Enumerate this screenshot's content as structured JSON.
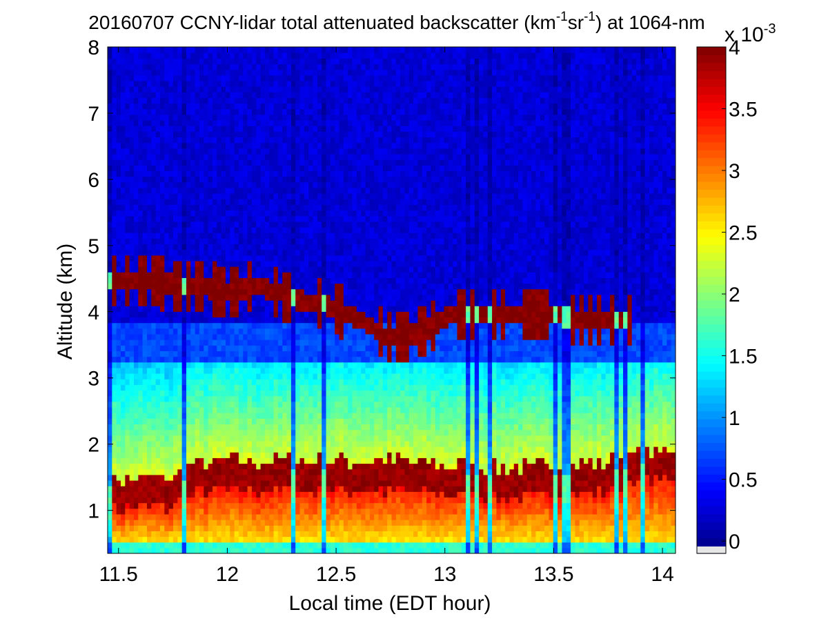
{
  "chart_data": {
    "type": "heatmap",
    "title": {
      "prefix": "20160707 CCNY-lidar total attenuated backscatter (km",
      "sup1": "-1",
      "mid": "sr",
      "sup2": "-1",
      "suffix": ") at 1064-nm"
    },
    "xlabel": "Local time (EDT hour)",
    "ylabel": "Altitude (km)",
    "xlim": [
      11.45,
      14.06
    ],
    "ylim": [
      0.35,
      8
    ],
    "x_ticks": [
      11.5,
      12,
      12.5,
      13,
      13.5,
      14
    ],
    "x_tick_labels": [
      "11.5",
      "12",
      "12.5",
      "13",
      "13.5",
      "14"
    ],
    "y_ticks": [
      1,
      2,
      3,
      4,
      5,
      6,
      7,
      8
    ],
    "y_tick_labels": [
      "1",
      "2",
      "3",
      "4",
      "5",
      "6",
      "7",
      "8"
    ],
    "colorbar": {
      "colormap": "jet",
      "range": [
        -0.1,
        4
      ],
      "ticks": [
        0,
        0.5,
        1,
        1.5,
        2,
        2.5,
        3,
        3.5,
        4
      ],
      "tick_labels": [
        "0",
        "0.5",
        "1",
        "1.5",
        "2",
        "2.5",
        "3",
        "3.5",
        "4"
      ],
      "exponent_label": "x 10",
      "exponent": "-3"
    },
    "features": {
      "boundary_layer_top_km": [
        [
          11.45,
          1.45
        ],
        [
          11.6,
          1.5
        ],
        [
          11.75,
          1.5
        ],
        [
          11.85,
          1.7
        ],
        [
          12.0,
          1.75
        ],
        [
          12.2,
          1.75
        ],
        [
          12.4,
          1.75
        ],
        [
          12.6,
          1.75
        ],
        [
          12.8,
          1.75
        ],
        [
          13.0,
          1.7
        ],
        [
          13.2,
          1.65
        ],
        [
          13.4,
          1.65
        ],
        [
          13.6,
          1.7
        ],
        [
          13.8,
          1.75
        ],
        [
          14.06,
          1.95
        ]
      ],
      "elevated_layer_km": [
        [
          11.45,
          4.45
        ],
        [
          11.65,
          4.45
        ],
        [
          11.85,
          4.4
        ],
        [
          12.0,
          4.3
        ],
        [
          12.15,
          4.4
        ],
        [
          12.3,
          4.2
        ],
        [
          12.45,
          4.1
        ],
        [
          12.6,
          3.9
        ],
        [
          12.75,
          3.6
        ],
        [
          12.9,
          3.7
        ],
        [
          13.05,
          4.0
        ],
        [
          13.2,
          3.95
        ],
        [
          13.4,
          4.0
        ],
        [
          13.6,
          3.9
        ],
        [
          13.8,
          3.85
        ]
      ],
      "cloud_level": 4.0,
      "background_level": 0.25
    }
  }
}
